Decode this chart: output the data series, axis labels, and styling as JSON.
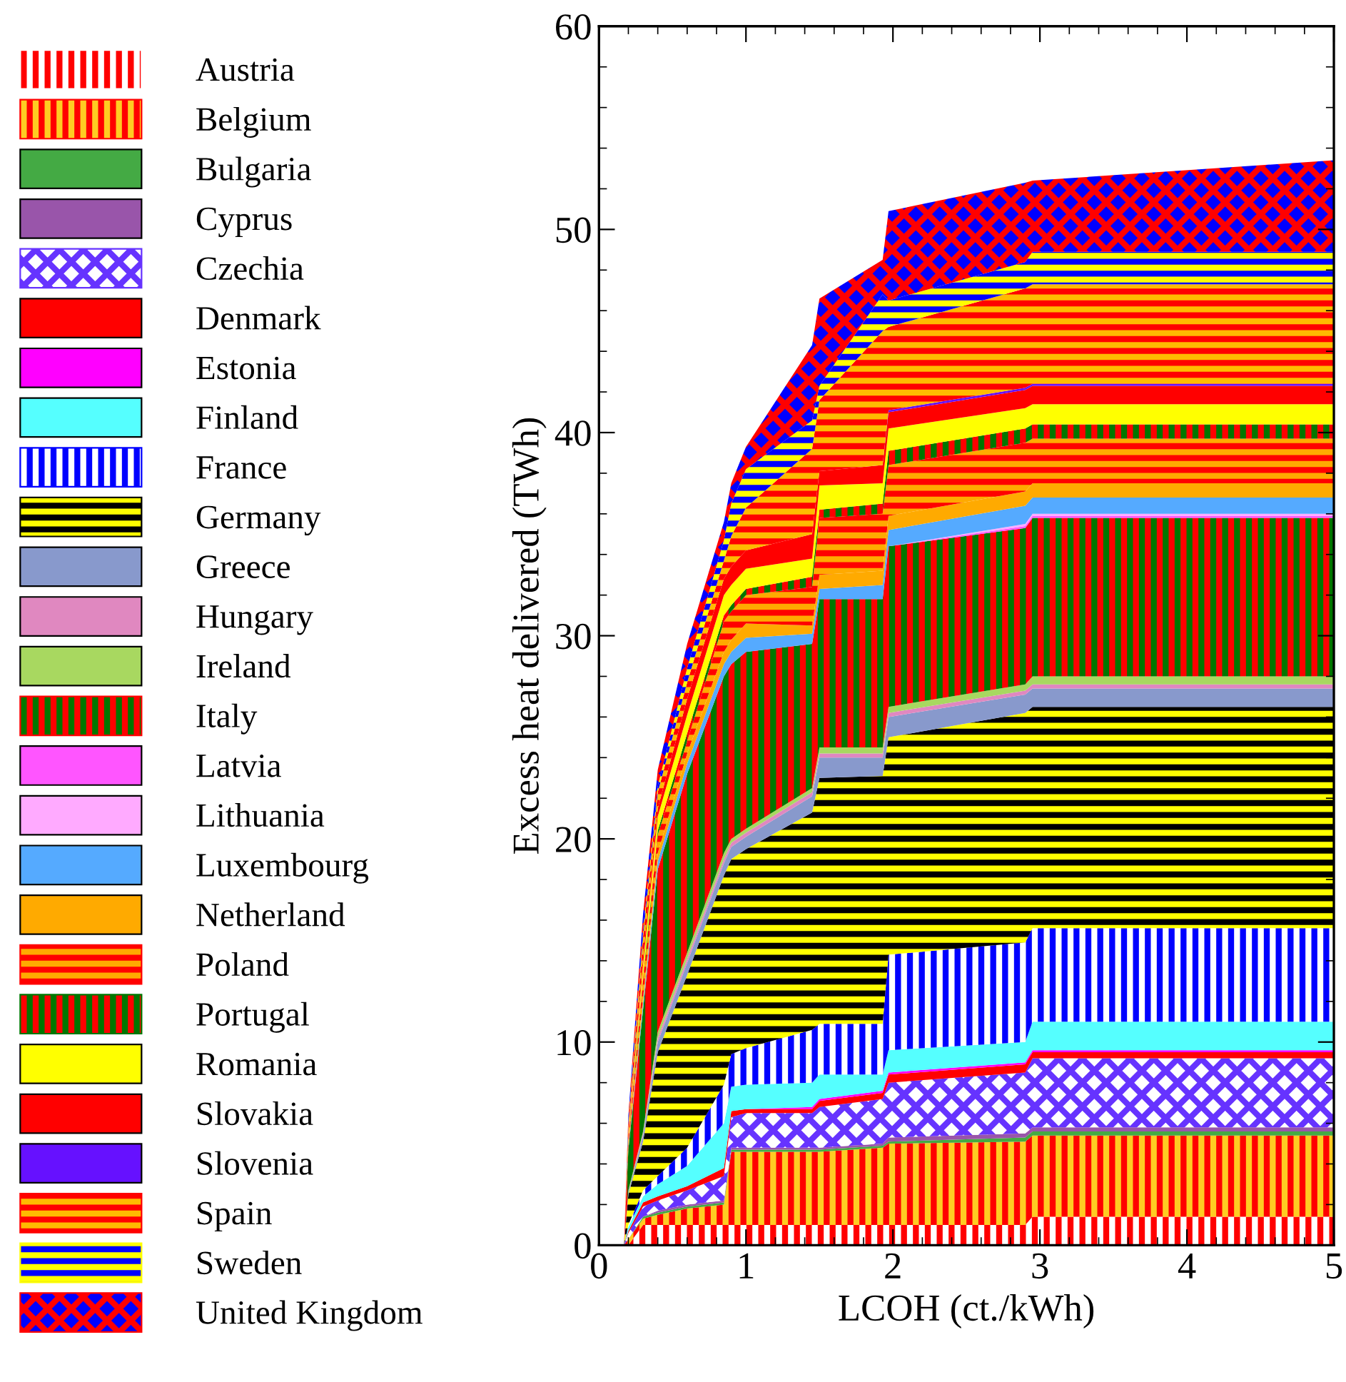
{
  "chart_data": {
    "type": "area",
    "stacked": true,
    "xlabel": "LCOH (ct./kWh)",
    "ylabel": "Excess heat delivered (TWh)",
    "xlim": [
      0,
      5
    ],
    "ylim": [
      0,
      60
    ],
    "xticks": [
      0,
      1,
      2,
      3,
      4,
      5
    ],
    "yticks": [
      0,
      10,
      20,
      30,
      40,
      50,
      60
    ],
    "grid": false,
    "legend": "left",
    "x": [
      0.17,
      0.2,
      0.3,
      0.4,
      0.6,
      0.85,
      0.9,
      1.0,
      1.45,
      1.5,
      1.93,
      1.97,
      2.9,
      2.95,
      5.0
    ],
    "series": [
      {
        "name": "Austria",
        "color": "#ff0000",
        "values": [
          0,
          0,
          1.0,
          1.0,
          1.0,
          1.0,
          1.0,
          1.0,
          1.0,
          1.0,
          1.0,
          1.0,
          1.0,
          1.4,
          1.4
        ]
      },
      {
        "name": "Belgium",
        "color": "#ffcc22",
        "values": [
          0,
          0.3,
          0.3,
          0.5,
          0.8,
          1.0,
          3.6,
          3.6,
          3.6,
          3.6,
          3.8,
          4.0,
          4.1,
          4.0,
          4.0
        ]
      },
      {
        "name": "Bulgaria",
        "color": "#44aa44",
        "values": [
          0,
          0,
          0.1,
          0.1,
          0.1,
          0.1,
          0.1,
          0.1,
          0.1,
          0.1,
          0.1,
          0.1,
          0.2,
          0.2,
          0.2
        ]
      },
      {
        "name": "Cyprus",
        "color": "#9955aa",
        "values": [
          0,
          0,
          0,
          0.1,
          0.1,
          0.1,
          0.1,
          0.1,
          0.1,
          0.1,
          0.1,
          0.2,
          0.2,
          0.2,
          0.2
        ]
      },
      {
        "name": "Czechia",
        "color": "#ffffff",
        "values": [
          0,
          0.3,
          0.5,
          0.5,
          0.7,
          1.2,
          1.5,
          1.7,
          1.7,
          2.0,
          2.2,
          2.7,
          3.0,
          3.4,
          3.4
        ]
      },
      {
        "name": "Denmark",
        "color": "#ff0000",
        "values": [
          0,
          0.1,
          0.2,
          0.2,
          0.2,
          0.4,
          0.3,
          0.2,
          0.2,
          0.3,
          0.3,
          0.4,
          0.4,
          0.3,
          0.3
        ]
      },
      {
        "name": "Estonia",
        "color": "#ff00ff",
        "values": [
          0,
          0,
          0,
          0,
          0,
          0,
          0,
          0,
          0.1,
          0.1,
          0.1,
          0.1,
          0.1,
          0.1,
          0.1
        ]
      },
      {
        "name": "Finland",
        "color": "#55ffff",
        "values": [
          0,
          0.2,
          0.3,
          0.6,
          1.0,
          2.2,
          1.2,
          1.2,
          1.2,
          1.2,
          0.8,
          1.1,
          1.0,
          1.4,
          1.4
        ]
      },
      {
        "name": "France",
        "color": "#ffffff",
        "values": [
          0,
          0.1,
          0.3,
          0.4,
          0.9,
          1.9,
          1.6,
          1.8,
          2.6,
          2.5,
          2.5,
          4.7,
          4.9,
          4.6,
          4.6
        ]
      },
      {
        "name": "Germany",
        "color": "#ffff00",
        "values": [
          0,
          1.5,
          2.4,
          6.1,
          8.5,
          10.3,
          9.6,
          9.8,
          10.7,
          12.1,
          12.2,
          10.7,
          11.3,
          10.9,
          10.9
        ]
      },
      {
        "name": "Greece",
        "color": "#8899cc",
        "values": [
          0,
          0.1,
          0.3,
          0.5,
          0.6,
          0.6,
          0.6,
          0.6,
          0.8,
          1.0,
          0.9,
          1.0,
          0.9,
          0.9,
          0.9
        ]
      },
      {
        "name": "Hungary",
        "color": "#e088c0",
        "values": [
          0,
          0,
          0.1,
          0.2,
          0.2,
          0.2,
          0.2,
          0.2,
          0.2,
          0.2,
          0.2,
          0.2,
          0.2,
          0.2,
          0.2
        ]
      },
      {
        "name": "Ireland",
        "color": "#a8d860",
        "values": [
          0,
          0.1,
          0.1,
          0.3,
          0.3,
          0.3,
          0.2,
          0.2,
          0.2,
          0.3,
          0.3,
          0.3,
          0.3,
          0.4,
          0.4
        ]
      },
      {
        "name": "Italy",
        "color": "#007700",
        "values": [
          0,
          2.0,
          6.0,
          8.0,
          8.8,
          8.7,
          8.6,
          8.7,
          7.1,
          7.3,
          7.3,
          7.9,
          7.7,
          7.8,
          7.8
        ]
      },
      {
        "name": "Latvia",
        "color": "#ff55ff",
        "values": [
          0,
          0,
          0,
          0,
          0,
          0,
          0,
          0,
          0,
          0,
          0,
          0,
          0.1,
          0.1,
          0.1
        ]
      },
      {
        "name": "Lithuania",
        "color": "#ffaaff",
        "values": [
          0,
          0,
          0,
          0,
          0,
          0,
          0,
          0,
          0,
          0,
          0,
          0,
          0.1,
          0.1,
          0.1
        ]
      },
      {
        "name": "Luxembourg",
        "color": "#55aaff",
        "values": [
          0,
          0.1,
          0.3,
          0.4,
          0.5,
          0.6,
          0.6,
          0.7,
          0.5,
          0.5,
          0.7,
          0.8,
          0.9,
          0.8,
          0.8
        ]
      },
      {
        "name": "Netherland",
        "color": "#ffaa00",
        "values": [
          0,
          0.1,
          0.3,
          0.4,
          0.5,
          0.6,
          0.6,
          0.7,
          0.4,
          0.7,
          0.7,
          0.7,
          0.7,
          0.7,
          0.7
        ]
      },
      {
        "name": "Poland",
        "color": "#ffaa00",
        "values": [
          0,
          0.3,
          0.8,
          0.9,
          0.6,
          1.5,
          1.4,
          1.4,
          1.9,
          2.8,
          2.8,
          2.5,
          2.4,
          2.2,
          2.2
        ]
      },
      {
        "name": "Portugal",
        "color": "#ff0000",
        "values": [
          0,
          0.1,
          0.2,
          0.2,
          0.4,
          0.3,
          0.3,
          0.3,
          0.5,
          0.4,
          0.5,
          0.7,
          0.7,
          0.7,
          0.7
        ]
      },
      {
        "name": "Romania",
        "color": "#ffff00",
        "values": [
          0,
          0.2,
          0.6,
          0.7,
          0.9,
          1.0,
          1.0,
          1.0,
          0.9,
          1.2,
          1.0,
          1.1,
          1.0,
          1.0,
          1.0
        ]
      },
      {
        "name": "Slovakia",
        "color": "#ff0000",
        "values": [
          0,
          0.2,
          0.4,
          0.4,
          0.8,
          0.8,
          0.9,
          0.9,
          1.2,
          0.7,
          0.9,
          0.8,
          0.9,
          0.9,
          0.9
        ]
      },
      {
        "name": "Slovenia",
        "color": "#6611ff",
        "values": [
          0,
          0,
          0,
          0,
          0,
          0,
          0,
          0,
          0,
          0,
          0,
          0.1,
          0.1,
          0.1,
          0.1
        ]
      },
      {
        "name": "Spain",
        "color": "#ffbb00",
        "values": [
          0,
          0.3,
          1.0,
          0.8,
          0.8,
          0.9,
          1.5,
          2.1,
          4.2,
          3.5,
          6.6,
          4.1,
          4.9,
          4.9,
          4.9
        ]
      },
      {
        "name": "Sweden",
        "color": "#0000ff",
        "values": [
          0,
          0.1,
          0.3,
          0.3,
          0.7,
          1.0,
          1.6,
          1.9,
          1.4,
          0.7,
          1.8,
          1.3,
          1.3,
          1.6,
          1.6
        ]
      },
      {
        "name": "United Kingdom",
        "color": "#0000ff",
        "values": [
          0,
          0.3,
          0.8,
          0.8,
          1.2,
          0.9,
          1.0,
          1.1,
          3.7,
          4.3,
          1.7,
          4.4,
          3.9,
          3.5,
          4.5
        ]
      }
    ]
  }
}
